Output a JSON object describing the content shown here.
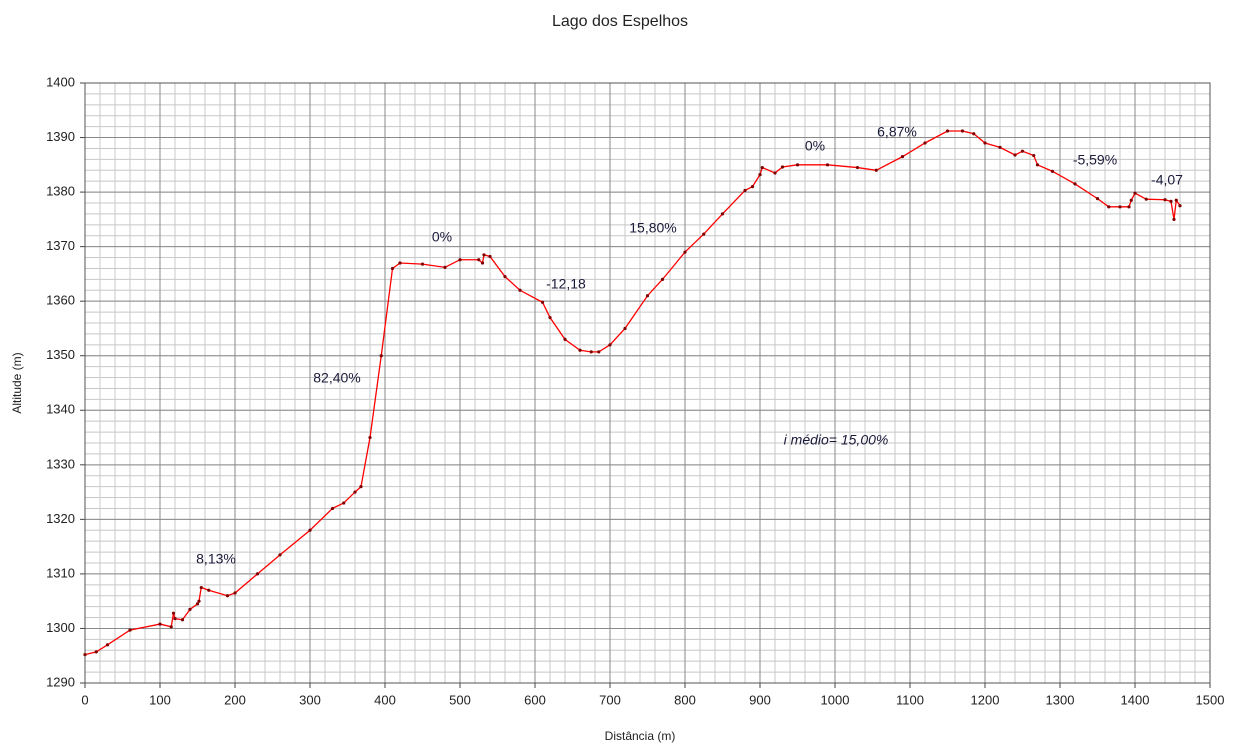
{
  "chart_data": {
    "type": "line",
    "title": "Lago dos Espelhos",
    "x_label": "Distância (m)",
    "y_label": "Altitude (m)",
    "x": [
      0,
      15,
      30,
      60,
      100,
      115,
      118,
      120,
      130,
      140,
      150,
      152,
      155,
      165,
      190,
      200,
      230,
      260,
      300,
      330,
      345,
      360,
      368,
      380,
      395,
      410,
      420,
      450,
      480,
      500,
      525,
      530,
      532,
      540,
      560,
      580,
      610,
      620,
      640,
      660,
      675,
      685,
      700,
      720,
      750,
      770,
      800,
      825,
      850,
      880,
      890,
      900,
      903,
      920,
      930,
      950,
      990,
      1030,
      1055,
      1090,
      1120,
      1150,
      1170,
      1185,
      1200,
      1220,
      1240,
      1250,
      1265,
      1270,
      1290,
      1320,
      1350,
      1365,
      1380,
      1392,
      1395,
      1400,
      1415,
      1440,
      1448,
      1452,
      1455,
      1460
    ],
    "series": [
      {
        "color": "#ff0000",
        "marker_color": "#800000",
        "values": [
          1295.2,
          1295.7,
          1297,
          1299.7,
          1300.8,
          1300.3,
          1302.8,
          1301.8,
          1301.6,
          1303.5,
          1304.5,
          1305,
          1307.5,
          1307,
          1306,
          1306.5,
          1310,
          1313.5,
          1318,
          1322,
          1323,
          1325,
          1326,
          1335,
          1350,
          1366,
          1367,
          1366.8,
          1366.2,
          1367.6,
          1367.6,
          1367,
          1368.5,
          1368.2,
          1364.5,
          1362,
          1359.8,
          1357,
          1353,
          1351,
          1350.7,
          1350.7,
          1352,
          1355,
          1361,
          1364,
          1369,
          1372.3,
          1376,
          1380.3,
          1381,
          1383.2,
          1384.5,
          1383.5,
          1384.6,
          1385,
          1385,
          1384.5,
          1384,
          1386.5,
          1389,
          1391.2,
          1391.2,
          1390.7,
          1389,
          1388.2,
          1386.8,
          1387.5,
          1386.7,
          1385,
          1383.8,
          1381.5,
          1378.8,
          1377.3,
          1377.3,
          1377.3,
          1378.5,
          1379.8,
          1378.7,
          1378.6,
          1378.3,
          1375,
          1378.5,
          1377.5
        ]
      }
    ],
    "annotations": [
      "8,13%",
      "82,40%",
      "0%",
      "-12,18",
      "15,80%",
      "0%",
      "6,87%",
      "-5,59%",
      "-4,07",
      "i médio= 15,00%"
    ],
    "xlim": [
      0,
      1500
    ],
    "xticks": [
      0,
      100,
      200,
      300,
      400,
      500,
      600,
      700,
      800,
      900,
      1000,
      1100,
      1200,
      1300,
      1400,
      1500
    ],
    "ylim": [
      1290,
      1400
    ],
    "yticks": [
      1290,
      1300,
      1310,
      1320,
      1330,
      1340,
      1350,
      1360,
      1370,
      1380,
      1390,
      1400
    ],
    "grid": true,
    "minor_grid": {
      "x": 20,
      "y": 2
    }
  }
}
